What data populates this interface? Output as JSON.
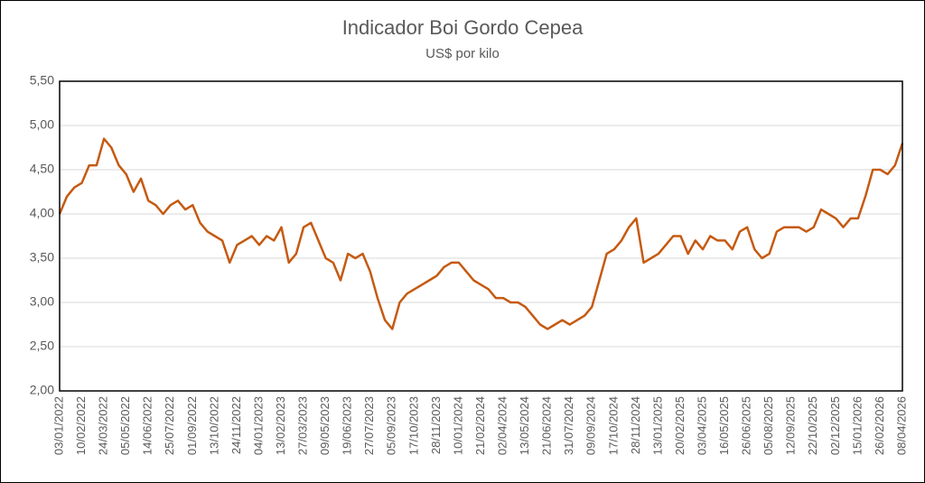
{
  "chart_data": {
    "type": "line",
    "title": "Indicador Boi Gordo Cepea",
    "subtitle": "US$ por kilo",
    "categories": [
      "03/01/2022",
      null,
      null,
      "10/02/2022",
      null,
      null,
      "24/03/2022",
      null,
      null,
      "05/05/2022",
      null,
      null,
      "14/06/2022",
      null,
      null,
      "25/07/2022",
      null,
      null,
      "01/09/2022",
      null,
      null,
      "13/10/2022",
      null,
      null,
      "24/11/2022",
      null,
      null,
      "04/01/2023",
      null,
      null,
      "13/02/2023",
      null,
      null,
      "27/03/2023",
      null,
      null,
      "09/05/2023",
      null,
      null,
      "19/06/2023",
      null,
      null,
      "27/07/2023",
      null,
      null,
      "05/09/2023",
      null,
      null,
      "17/10/2023",
      null,
      null,
      "28/11/2023",
      null,
      null,
      "10/01/2024",
      null,
      null,
      "21/02/2024",
      null,
      null,
      "02/04/2024",
      null,
      null,
      "13/05/2024",
      null,
      null,
      "21/06/2024",
      null,
      null,
      "31/07/2024",
      null,
      null,
      "09/09/2024",
      null,
      null,
      "17/10/2024",
      null,
      null,
      "28/11/2024",
      null,
      null,
      "13/01/2025",
      null,
      null,
      "20/02/2025",
      null,
      null,
      "03/04/2025",
      null,
      null,
      "16/05/2025",
      null,
      null,
      "26/06/2025",
      null,
      null,
      "05/08/2025",
      null,
      null,
      "12/09/2025",
      null,
      null,
      "22/10/2025",
      null,
      null,
      "02/12/2025",
      null,
      null,
      "15/01/2026",
      null,
      null,
      "26/02/2026",
      null,
      null,
      "08/04/2026"
    ],
    "values": [
      4.0,
      4.2,
      4.3,
      4.35,
      4.55,
      4.55,
      4.85,
      4.75,
      4.55,
      4.45,
      4.25,
      4.4,
      4.15,
      4.1,
      4.0,
      4.1,
      4.15,
      4.05,
      4.1,
      3.9,
      3.8,
      3.75,
      3.7,
      3.45,
      3.65,
      3.7,
      3.75,
      3.65,
      3.75,
      3.7,
      3.85,
      3.45,
      3.55,
      3.85,
      3.9,
      3.7,
      3.5,
      3.45,
      3.25,
      3.55,
      3.5,
      3.55,
      3.35,
      3.05,
      2.8,
      2.7,
      3.0,
      3.1,
      3.15,
      3.2,
      3.25,
      3.3,
      3.4,
      3.45,
      3.45,
      3.35,
      3.25,
      3.2,
      3.15,
      3.05,
      3.05,
      3.0,
      3.0,
      2.95,
      2.85,
      2.75,
      2.7,
      2.75,
      2.8,
      2.75,
      2.8,
      2.85,
      2.95,
      3.25,
      3.55,
      3.6,
      3.7,
      3.85,
      3.95,
      3.45,
      3.5,
      3.55,
      3.65,
      3.75,
      3.75,
      3.55,
      3.7,
      3.6,
      3.75,
      3.7,
      3.7,
      3.6,
      3.8,
      3.85,
      3.6,
      3.5,
      3.55,
      3.8,
      3.85,
      3.85,
      3.85,
      3.8,
      3.85,
      4.05,
      4.0,
      3.95,
      3.85,
      3.95,
      3.95,
      4.2,
      4.5,
      4.5,
      4.45,
      4.55,
      4.8
    ],
    "color": "#c55a11",
    "ylim": [
      2,
      5.5
    ],
    "yticks": [
      {
        "value": 2,
        "label": "2,00"
      },
      {
        "value": 2.5,
        "label": "2,50"
      },
      {
        "value": 3,
        "label": "3,00"
      },
      {
        "value": 3.5,
        "label": "3,50"
      },
      {
        "value": 4,
        "label": "4,00"
      },
      {
        "value": 4.5,
        "label": "4,50"
      },
      {
        "value": 5,
        "label": "5,00"
      },
      {
        "value": 5.5,
        "label": "5,50"
      }
    ],
    "grid": true
  }
}
